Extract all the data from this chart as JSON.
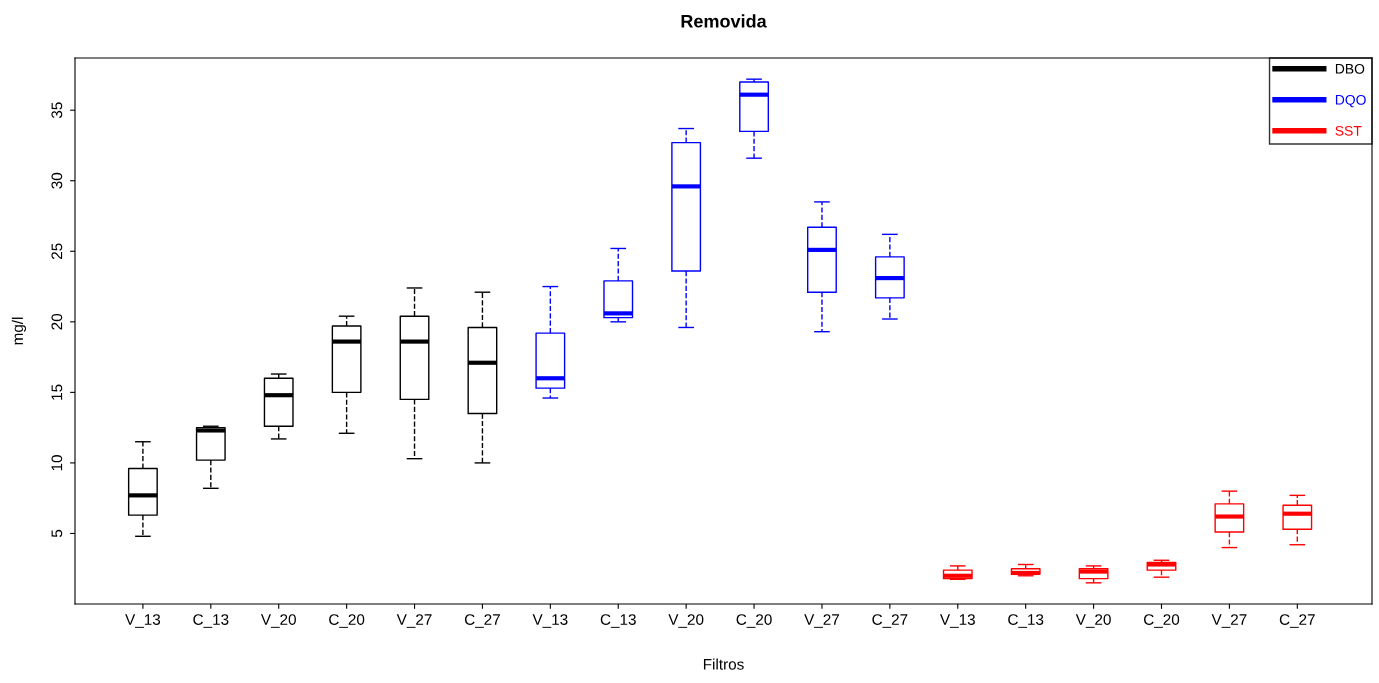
{
  "chart_data": {
    "type": "box",
    "title": "Removida",
    "xlabel": "Filtros",
    "ylabel": "mg/l",
    "categories": [
      "V_13",
      "C_13",
      "V_20",
      "C_20",
      "V_27",
      "C_27",
      "V_13",
      "C_13",
      "V_20",
      "C_20",
      "V_27",
      "C_27",
      "V_13",
      "C_13",
      "V_20",
      "C_20",
      "V_27",
      "C_27"
    ],
    "ylim": [
      0,
      38.7
    ],
    "yticks": [
      5,
      10,
      15,
      20,
      25,
      30,
      35
    ],
    "grid": false,
    "legend": "top right",
    "line_style": "dashed",
    "series": [
      {
        "name": "DBO",
        "color": "#000000",
        "boxes": [
          {
            "low": 4.8,
            "q1": 6.3,
            "median": 7.7,
            "q3": 9.6,
            "high": 11.5
          },
          {
            "low": 8.2,
            "q1": 10.2,
            "median": 12.3,
            "q3": 12.5,
            "high": 12.6
          },
          {
            "low": 11.7,
            "q1": 12.6,
            "median": 14.8,
            "q3": 16.0,
            "high": 16.3
          },
          {
            "low": 12.1,
            "q1": 15.0,
            "median": 18.6,
            "q3": 19.7,
            "high": 20.4
          },
          {
            "low": 10.3,
            "q1": 14.5,
            "median": 18.6,
            "q3": 20.4,
            "high": 22.4
          },
          {
            "low": 10.0,
            "q1": 13.5,
            "median": 17.1,
            "q3": 19.6,
            "high": 22.1
          },
          null,
          null,
          null,
          null,
          null,
          null,
          null,
          null,
          null,
          null,
          null,
          null
        ]
      },
      {
        "name": "DQO",
        "color": "#0000ff",
        "boxes": [
          null,
          null,
          null,
          null,
          null,
          null,
          {
            "low": 14.6,
            "q1": 15.3,
            "median": 16.0,
            "q3": 19.2,
            "high": 22.5
          },
          {
            "low": 20.0,
            "q1": 20.3,
            "median": 20.6,
            "q3": 22.9,
            "high": 25.2
          },
          {
            "low": 19.6,
            "q1": 23.6,
            "median": 29.6,
            "q3": 32.7,
            "high": 33.7
          },
          {
            "low": 31.6,
            "q1": 33.5,
            "median": 36.1,
            "q3": 37.0,
            "high": 37.2
          },
          {
            "low": 19.3,
            "q1": 22.1,
            "median": 25.1,
            "q3": 26.7,
            "high": 28.5
          },
          {
            "low": 20.2,
            "q1": 21.7,
            "median": 23.1,
            "q3": 24.6,
            "high": 26.2
          },
          null,
          null,
          null,
          null,
          null,
          null
        ]
      },
      {
        "name": "SST",
        "color": "#ff0000",
        "boxes": [
          null,
          null,
          null,
          null,
          null,
          null,
          null,
          null,
          null,
          null,
          null,
          null,
          {
            "low": 1.75,
            "q1": 1.8,
            "median": 2.0,
            "q3": 2.4,
            "high": 2.7
          },
          {
            "low": 2.0,
            "q1": 2.1,
            "median": 2.2,
            "q3": 2.5,
            "high": 2.8
          },
          {
            "low": 1.5,
            "q1": 1.8,
            "median": 2.3,
            "q3": 2.5,
            "high": 2.7
          },
          {
            "low": 1.9,
            "q1": 2.4,
            "median": 2.8,
            "q3": 2.95,
            "high": 3.1
          },
          {
            "low": 4.0,
            "q1": 5.1,
            "median": 6.2,
            "q3": 7.1,
            "high": 8.0
          },
          {
            "low": 4.2,
            "q1": 5.3,
            "median": 6.4,
            "q3": 7.0,
            "high": 7.7
          }
        ]
      }
    ]
  }
}
